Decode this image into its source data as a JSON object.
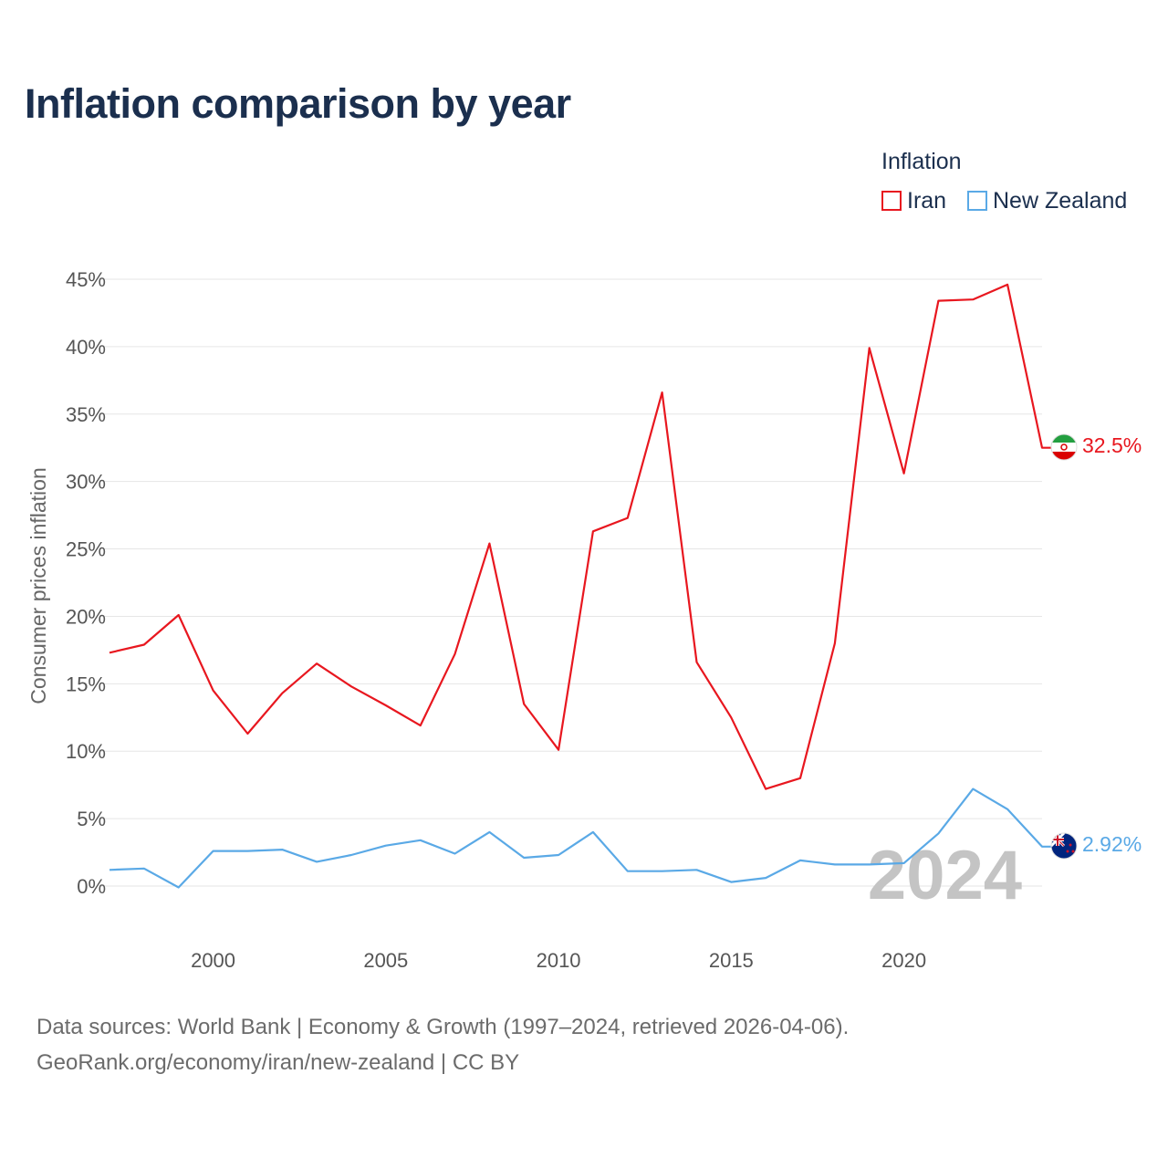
{
  "title": "Inflation comparison by year",
  "legend": {
    "title": "Inflation",
    "items": [
      {
        "label": "Iran",
        "color": "#e8171f"
      },
      {
        "label": "New Zealand",
        "color": "#5aa9e6"
      }
    ]
  },
  "chart_data": {
    "type": "line",
    "title": "Inflation comparison by year",
    "xlabel": "",
    "ylabel": "Consumer prices inflation",
    "x": [
      1997,
      1998,
      1999,
      2000,
      2001,
      2002,
      2003,
      2004,
      2005,
      2006,
      2007,
      2008,
      2009,
      2010,
      2011,
      2012,
      2013,
      2014,
      2015,
      2016,
      2017,
      2018,
      2019,
      2020,
      2021,
      2022,
      2023,
      2024
    ],
    "xlim": [
      1997,
      2024
    ],
    "ylim": [
      -2.5,
      45
    ],
    "xticks": [
      2000,
      2005,
      2010,
      2015,
      2020
    ],
    "yticks": [
      0,
      5,
      10,
      15,
      20,
      25,
      30,
      35,
      40,
      45
    ],
    "ytick_labels": [
      "0%",
      "5%",
      "10%",
      "15%",
      "20%",
      "25%",
      "30%",
      "35%",
      "40%",
      "45%"
    ],
    "grid": true,
    "series": [
      {
        "name": "Iran",
        "color": "#e8171f",
        "values": [
          17.3,
          17.9,
          20.1,
          14.5,
          11.3,
          14.3,
          16.5,
          14.8,
          13.4,
          11.9,
          17.2,
          25.4,
          13.5,
          10.1,
          26.3,
          27.3,
          36.6,
          16.6,
          12.5,
          7.2,
          8.0,
          18.0,
          39.9,
          30.6,
          43.4,
          43.5,
          44.6,
          32.5
        ],
        "end_label": "32.5%",
        "flag_icon": "iran-flag-icon"
      },
      {
        "name": "New Zealand",
        "color": "#5aa9e6",
        "values": [
          1.2,
          1.3,
          -0.1,
          2.6,
          2.6,
          2.7,
          1.8,
          2.3,
          3.0,
          3.4,
          2.4,
          4.0,
          2.1,
          2.3,
          4.0,
          1.1,
          1.1,
          1.2,
          0.3,
          0.6,
          1.9,
          1.6,
          1.6,
          1.7,
          3.9,
          7.2,
          5.7,
          2.92
        ],
        "end_label": "2.92%",
        "flag_icon": "new-zealand-flag-icon"
      }
    ],
    "annotation": "2024"
  },
  "footer": {
    "line1": "Data sources: World Bank | Economy & Growth (1997–2024, retrieved 2026-04-06).",
    "line2": "GeoRank.org/economy/iran/new-zealand | CC BY"
  }
}
